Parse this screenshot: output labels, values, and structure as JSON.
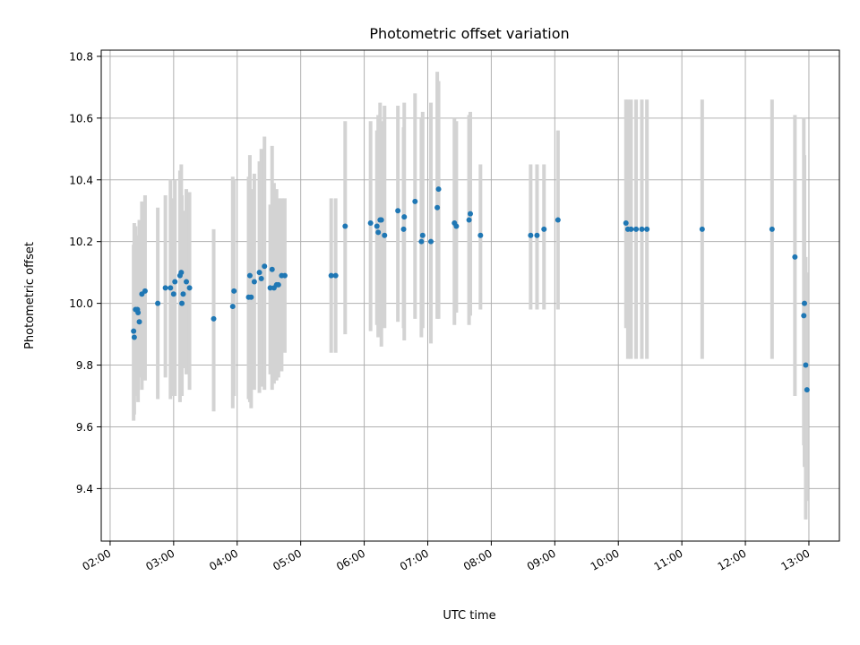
{
  "chart_data": {
    "type": "scatter",
    "title": "Photometric offset variation",
    "xlabel": "UTC time",
    "ylabel": "Photometric offset",
    "grid": true,
    "legend": "none",
    "x_unit": "UTC hour of day",
    "xlim": [
      1.86,
      13.48
    ],
    "ylim": [
      9.23,
      10.82
    ],
    "x_ticks": [
      2,
      3,
      4,
      5,
      6,
      7,
      8,
      9,
      10,
      11,
      12,
      13
    ],
    "x_tick_labels": [
      "02:00",
      "03:00",
      "04:00",
      "05:00",
      "06:00",
      "07:00",
      "08:00",
      "09:00",
      "10:00",
      "11:00",
      "12:00",
      "13:00"
    ],
    "y_ticks": [
      9.4,
      9.6,
      9.8,
      10.0,
      10.2,
      10.4,
      10.6,
      10.8
    ],
    "y_tick_labels": [
      "9.4",
      "9.6",
      "9.8",
      "10.0",
      "10.2",
      "10.4",
      "10.6",
      "10.8"
    ],
    "colors": {
      "points": "#1f77b4",
      "errorbars": "#d3d3d3",
      "grid": "#b0b0b0"
    },
    "series": [
      {
        "x": [
          2.37,
          2.38,
          2.4,
          2.43,
          2.44,
          2.46,
          2.5,
          2.55,
          2.75,
          2.87,
          2.95,
          3.0,
          3.02,
          3.1,
          3.12,
          3.13,
          3.15,
          3.2,
          3.25,
          3.63,
          3.93,
          3.95,
          4.18,
          4.2,
          4.22,
          4.27,
          4.35,
          4.38,
          4.43,
          4.52,
          4.55,
          4.58,
          4.62,
          4.65,
          4.7,
          4.75,
          5.48,
          5.55,
          5.7,
          6.1,
          6.2,
          6.22,
          6.25,
          6.27,
          6.32,
          6.53,
          6.62,
          6.63,
          6.8,
          6.9,
          6.92,
          7.05,
          7.15,
          7.17,
          7.42,
          7.45,
          7.65,
          7.67,
          7.83,
          8.62,
          8.72,
          8.83,
          9.05,
          10.12,
          10.15,
          10.2,
          10.28,
          10.37,
          10.45,
          11.32,
          12.42,
          12.78,
          12.92,
          12.93,
          12.95,
          12.97
        ],
        "y": [
          9.91,
          9.89,
          9.98,
          9.98,
          9.97,
          9.94,
          10.03,
          10.04,
          10.0,
          10.05,
          10.05,
          10.03,
          10.07,
          10.09,
          10.1,
          10.0,
          10.03,
          10.07,
          10.05,
          9.95,
          9.99,
          10.04,
          10.02,
          10.09,
          10.02,
          10.07,
          10.1,
          10.08,
          10.12,
          10.05,
          10.11,
          10.05,
          10.06,
          10.06,
          10.09,
          10.09,
          10.09,
          10.09,
          10.25,
          10.26,
          10.25,
          10.23,
          10.27,
          10.27,
          10.22,
          10.3,
          10.24,
          10.28,
          10.33,
          10.2,
          10.22,
          10.2,
          10.31,
          10.37,
          10.26,
          10.25,
          10.27,
          10.29,
          10.22,
          10.22,
          10.22,
          10.24,
          10.27,
          10.26,
          10.24,
          10.24,
          10.24,
          10.24,
          10.24,
          10.24,
          10.24,
          10.15,
          9.96,
          10.0,
          9.8,
          9.72
        ],
        "err_low": [
          9.62,
          9.64,
          9.7,
          9.74,
          9.68,
          9.76,
          9.72,
          9.75,
          9.69,
          9.76,
          9.69,
          9.7,
          9.7,
          9.68,
          9.72,
          9.7,
          9.79,
          9.77,
          9.72,
          9.65,
          9.66,
          9.7,
          9.69,
          9.68,
          9.66,
          9.72,
          9.71,
          9.73,
          9.72,
          9.77,
          9.72,
          9.74,
          9.75,
          9.76,
          9.78,
          9.84,
          9.84,
          9.84,
          9.9,
          9.91,
          9.93,
          9.89,
          9.9,
          9.86,
          9.92,
          9.94,
          9.92,
          9.88,
          9.95,
          9.89,
          9.92,
          9.87,
          9.95,
          9.95,
          9.93,
          9.97,
          9.93,
          9.96,
          9.98,
          9.98,
          9.98,
          9.98,
          9.98,
          9.92,
          9.82,
          9.82,
          9.82,
          9.82,
          9.82,
          9.82,
          9.82,
          9.7,
          9.54,
          9.47,
          9.3,
          9.36
        ],
        "err_high": [
          10.19,
          10.26,
          10.25,
          10.22,
          10.21,
          10.27,
          10.33,
          10.35,
          10.31,
          10.35,
          10.4,
          10.34,
          10.4,
          10.43,
          10.45,
          10.35,
          10.3,
          10.37,
          10.36,
          10.24,
          10.41,
          10.4,
          10.41,
          10.48,
          10.37,
          10.42,
          10.46,
          10.5,
          10.54,
          10.32,
          10.51,
          10.39,
          10.37,
          10.34,
          10.34,
          10.34,
          10.34,
          10.34,
          10.59,
          10.59,
          10.56,
          10.61,
          10.65,
          10.59,
          10.64,
          10.64,
          10.57,
          10.65,
          10.68,
          10.6,
          10.62,
          10.65,
          10.75,
          10.72,
          10.6,
          10.59,
          10.61,
          10.62,
          10.45,
          10.45,
          10.45,
          10.45,
          10.56,
          10.66,
          10.66,
          10.66,
          10.66,
          10.66,
          10.66,
          10.66,
          10.66,
          10.61,
          10.6,
          10.48,
          10.15,
          10.1
        ]
      }
    ]
  }
}
